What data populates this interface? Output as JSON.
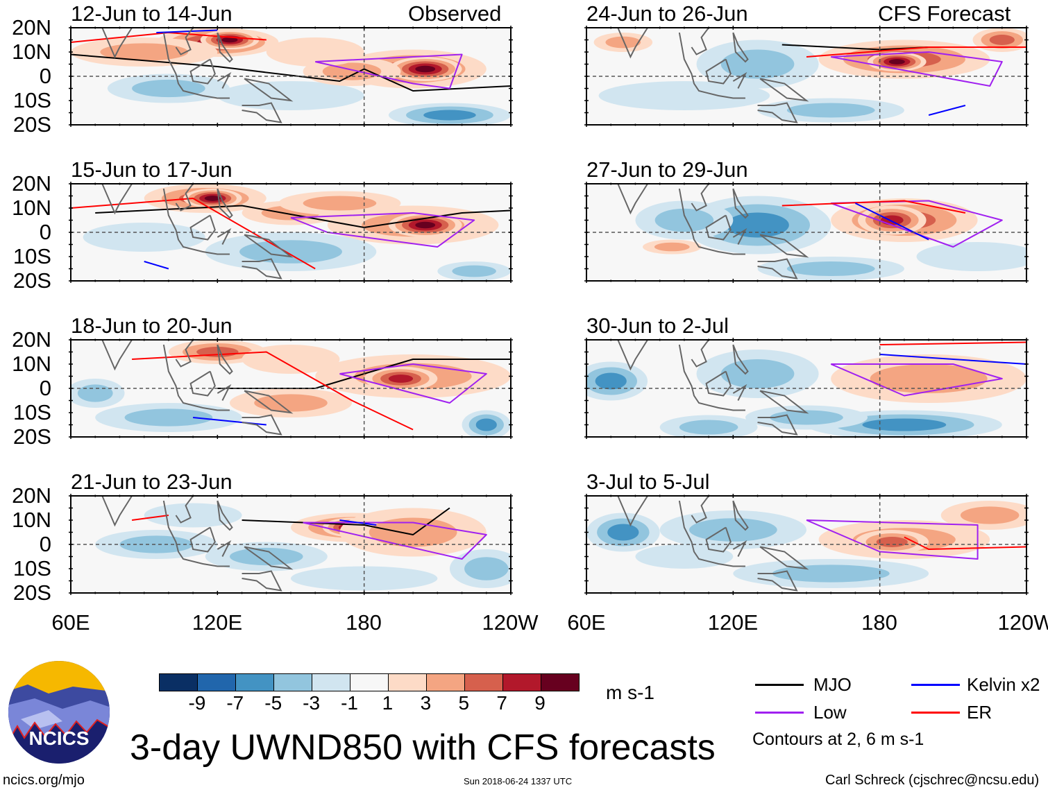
{
  "figure": {
    "title": "3-day UWND850 with CFS forecasts",
    "website": "ncics.org/mjo",
    "timestamp": "Sun 2018-06-24 1337 UTC",
    "author": "Carl Schreck (cjschrec@ncsu.edu)",
    "logo_text": "NCICS"
  },
  "columns": [
    {
      "label": "Observed"
    },
    {
      "label": "CFS Forecast"
    }
  ],
  "panels": [
    {
      "title": "12-Jun to 14-Jun"
    },
    {
      "title": "15-Jun to 17-Jun"
    },
    {
      "title": "18-Jun to 20-Jun"
    },
    {
      "title": "21-Jun to 23-Jun"
    },
    {
      "title": "24-Jun to 26-Jun"
    },
    {
      "title": "27-Jun to 29-Jun"
    },
    {
      "title": "30-Jun to 2-Jul"
    },
    {
      "title": "3-Jul to 5-Jul"
    }
  ],
  "axes": {
    "lat_labels": [
      "20N",
      "10N",
      "0",
      "10S",
      "20S"
    ],
    "lon_labels": [
      "60E",
      "120E",
      "180",
      "120W"
    ],
    "lon_range": [
      60,
      240
    ],
    "lat_range": [
      -20,
      20
    ]
  },
  "colorbar": {
    "units": "m s-1",
    "labels": [
      "-9",
      "-7",
      "-5",
      "-3",
      "-1",
      "1",
      "3",
      "5",
      "7",
      "9"
    ],
    "colors": [
      "#0a2f64",
      "#2166ac",
      "#4393c3",
      "#92c5de",
      "#d1e5f0",
      "#f7f7f7",
      "#fddbc7",
      "#f4a582",
      "#d6604d",
      "#b2182b",
      "#67001f"
    ]
  },
  "legend": {
    "items": [
      {
        "label": "MJO",
        "color": "#000000"
      },
      {
        "label": "Kelvin x2",
        "color": "#0000ff"
      },
      {
        "label": "Low",
        "color": "#a020f0"
      },
      {
        "label": "ER",
        "color": "#ff0000"
      }
    ],
    "note": "Contours at 2, 6 m s-1"
  }
}
